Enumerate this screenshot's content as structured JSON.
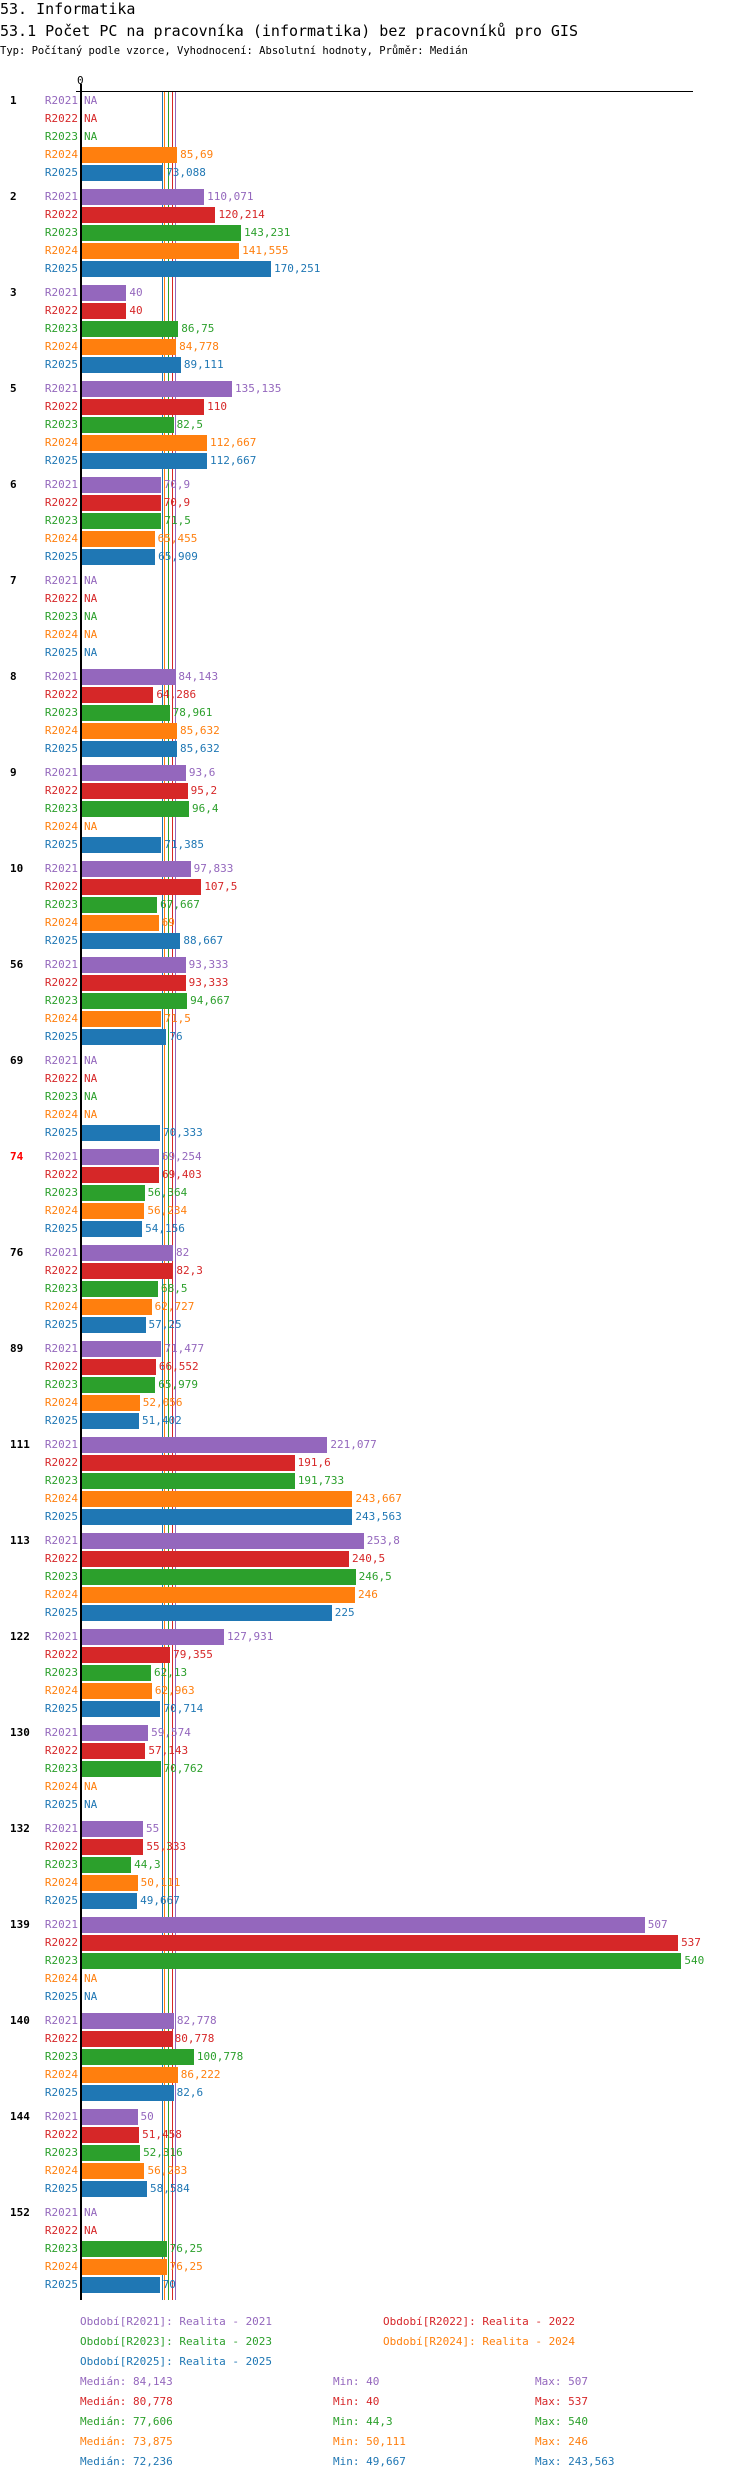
{
  "header": {
    "title": "53. Informatika",
    "subtitle": "53.1 Počet PC na pracovníka (informatika) bez pracovníků pro GIS",
    "description": "Typ: Počítaný podle vzorce, Vyhodnocení: Absolutní hodnoty, Průměr: Medián"
  },
  "chart_data": {
    "type": "bar",
    "orientation": "horizontal",
    "axis_zero_label": "0",
    "xlim": [
      0,
      560
    ],
    "series": [
      {
        "name": "R2021",
        "color": "#9467bd",
        "legend": "Období[R2021]: Realita - 2021",
        "median_label": "Medián: 84,143",
        "median": 84.143,
        "min_label": "Min: 40",
        "max_label": "Max: 507"
      },
      {
        "name": "R2022",
        "color": "#d62728",
        "legend": "Období[R2022]: Realita - 2022",
        "median_label": "Medián: 80,778",
        "median": 80.778,
        "min_label": "Min: 40",
        "max_label": "Max: 537"
      },
      {
        "name": "R2023",
        "color": "#2ca02c",
        "legend": "Období[R2023]: Realita - 2023",
        "median_label": "Medián: 77,606",
        "median": 77.606,
        "min_label": "Min: 44,3",
        "max_label": "Max: 540"
      },
      {
        "name": "R2024",
        "color": "#ff7f0e",
        "legend": "Období[R2024]: Realita - 2024",
        "median_label": "Medián: 73,875",
        "median": 73.875,
        "min_label": "Min: 50,111",
        "max_label": "Max: 246"
      },
      {
        "name": "R2025",
        "color": "#1f77b4",
        "legend": "Období[R2025]: Realita - 2025",
        "median_label": "Medián: 72,236",
        "median": 72.236,
        "min_label": "Min: 49,667",
        "max_label": "Max: 243,563"
      }
    ],
    "na_label": "NA",
    "groups": [
      {
        "id": "1",
        "values": [
          null,
          null,
          null,
          85.69,
          73.088
        ]
      },
      {
        "id": "2",
        "values": [
          110.071,
          120.214,
          143.231,
          141.555,
          170.251
        ]
      },
      {
        "id": "3",
        "values": [
          40,
          40,
          86.75,
          84.778,
          89.111
        ]
      },
      {
        "id": "5",
        "values": [
          135.135,
          110,
          82.5,
          112.667,
          112.667
        ]
      },
      {
        "id": "6",
        "values": [
          70.9,
          70.9,
          71.5,
          65.455,
          65.909
        ]
      },
      {
        "id": "7",
        "values": [
          null,
          null,
          null,
          null,
          null
        ]
      },
      {
        "id": "8",
        "values": [
          84.143,
          64.286,
          78.961,
          85.632,
          85.632
        ]
      },
      {
        "id": "9",
        "values": [
          93.6,
          95.2,
          96.4,
          null,
          71.385
        ]
      },
      {
        "id": "10",
        "values": [
          97.833,
          107.5,
          67.667,
          69,
          88.667
        ]
      },
      {
        "id": "56",
        "values": [
          93.333,
          93.333,
          94.667,
          71.5,
          76
        ]
      },
      {
        "id": "69",
        "values": [
          null,
          null,
          null,
          null,
          70.333
        ]
      },
      {
        "id": "74",
        "highlight": "#ff0000",
        "values": [
          69.254,
          69.403,
          56.364,
          56.234,
          54.156
        ]
      },
      {
        "id": "76",
        "values": [
          82,
          82.3,
          68.5,
          62.727,
          57.25
        ]
      },
      {
        "id": "89",
        "values": [
          71.477,
          66.552,
          65.979,
          52.056,
          51.402
        ]
      },
      {
        "id": "111",
        "values": [
          221.077,
          191.6,
          191.733,
          243.667,
          243.563
        ]
      },
      {
        "id": "113",
        "values": [
          253.8,
          240.5,
          246.5,
          246,
          225
        ]
      },
      {
        "id": "122",
        "values": [
          127.931,
          79.355,
          62.13,
          62.963,
          70.714
        ]
      },
      {
        "id": "130",
        "values": [
          59.574,
          57.143,
          70.762,
          null,
          null
        ]
      },
      {
        "id": "132",
        "values": [
          55,
          55.333,
          44.3,
          50.111,
          49.667
        ]
      },
      {
        "id": "139",
        "values": [
          507,
          537,
          540,
          null,
          null
        ]
      },
      {
        "id": "140",
        "values": [
          82.778,
          80.778,
          100.778,
          86.222,
          82.6
        ]
      },
      {
        "id": "144",
        "values": [
          50,
          51.458,
          52.316,
          56.283,
          58.584
        ]
      },
      {
        "id": "152",
        "values": [
          null,
          null,
          76.25,
          76.25,
          70
        ]
      }
    ]
  }
}
